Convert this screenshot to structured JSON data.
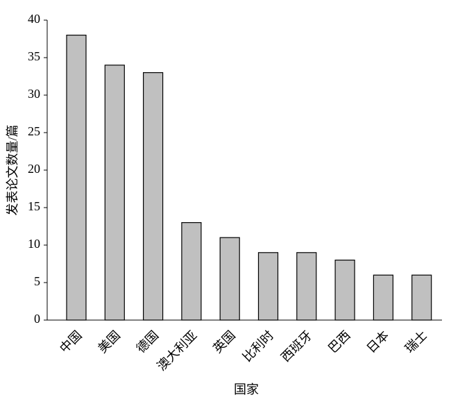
{
  "chart_data": {
    "type": "bar",
    "categories": [
      "中国",
      "美国",
      "德国",
      "澳大利亚",
      "英国",
      "比利时",
      "西班牙",
      "巴西",
      "日本",
      "瑞士"
    ],
    "values": [
      38,
      34,
      33,
      13,
      11,
      9,
      9,
      8,
      6,
      6
    ],
    "color": "#c0c0c0",
    "x_label": "国家",
    "y_label": "发表论文数量/篇",
    "ylim": [
      0,
      40
    ],
    "yticks": [
      0,
      5,
      10,
      15,
      20,
      25,
      30,
      35,
      40
    ],
    "grid": false
  }
}
